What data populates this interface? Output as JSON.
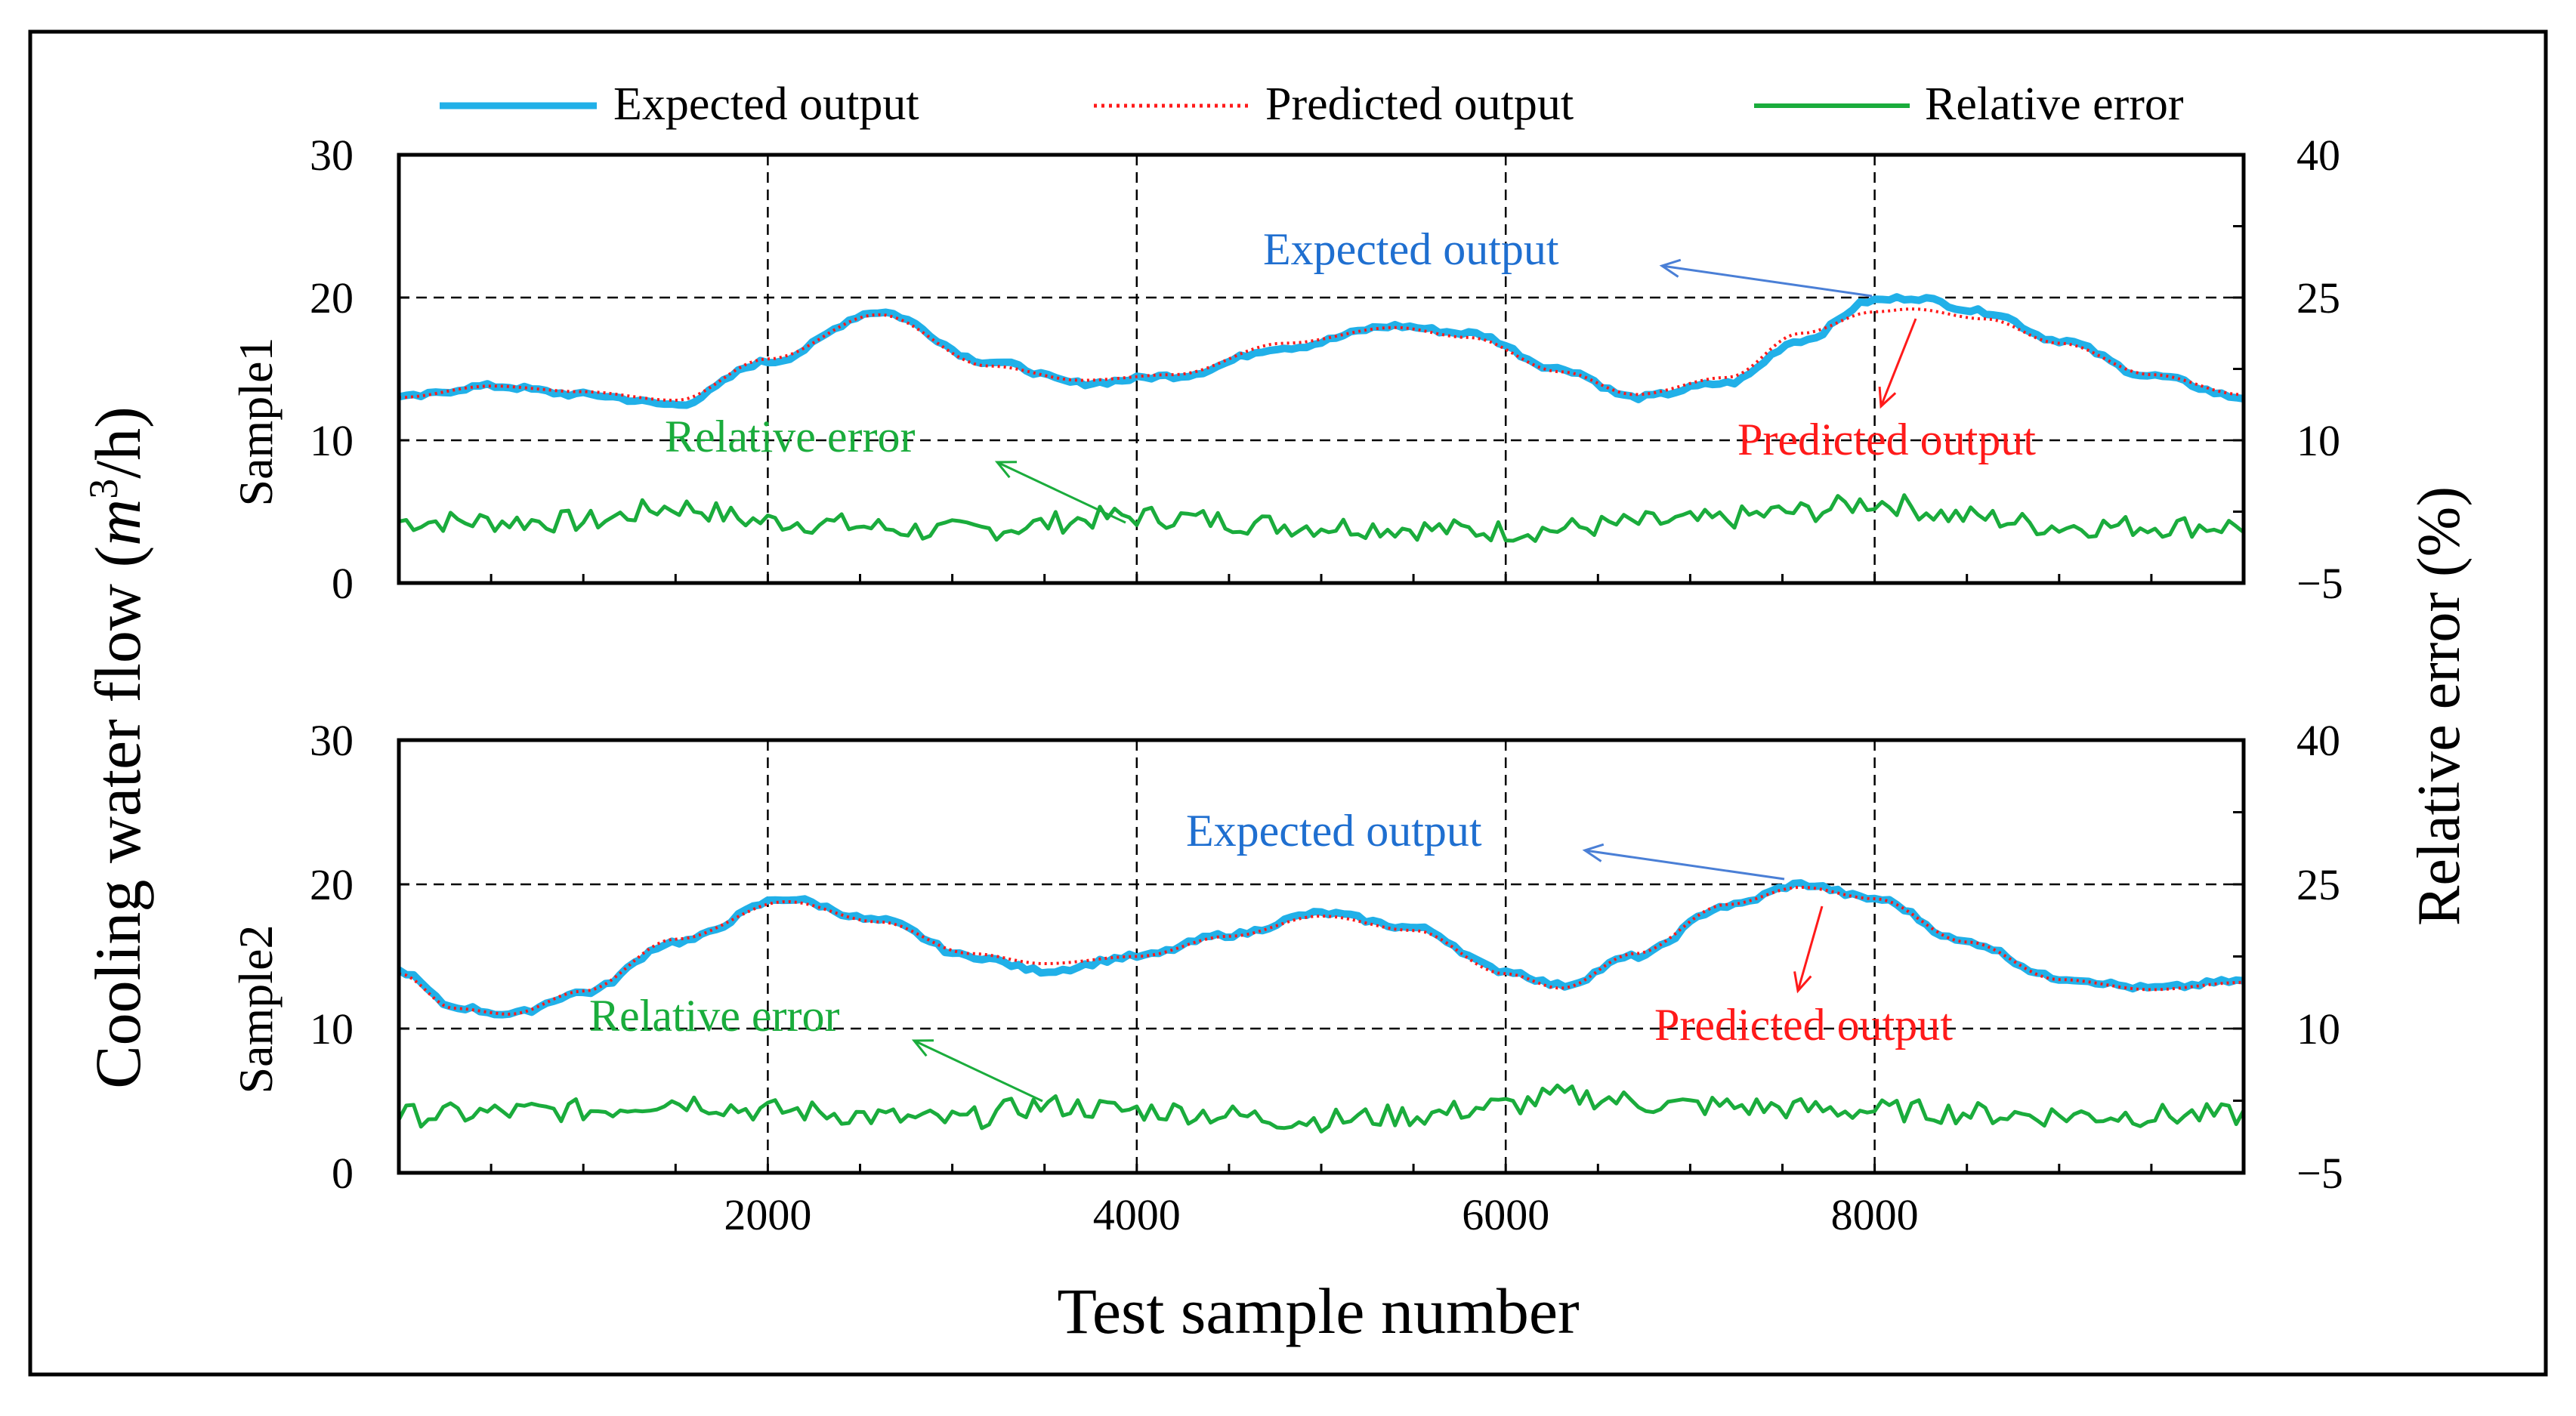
{
  "chart_data": {
    "type": "line",
    "x_title": "Test sample number",
    "y_title": "Cooling water flow (",
    "y_title_unit_base": "m",
    "y_title_unit_exp": "3",
    "y_title_unit_rest": "/h)",
    "y2_title": "Relative error (%)",
    "xlim": [
      0,
      10000
    ],
    "x_ticks": [
      2000,
      4000,
      6000,
      8000
    ],
    "x_tick_labels": [
      "2000",
      "4000",
      "6000",
      "8000"
    ],
    "legend": [
      {
        "name": "Expected output",
        "color": "#21b0e8",
        "style": "solid"
      },
      {
        "name": "Predicted output",
        "color": "#ff1a1a",
        "style": "dotted"
      },
      {
        "name": "Relative error",
        "color": "#1aac3c",
        "style": "solid"
      }
    ],
    "panels": [
      {
        "name": "Sample1",
        "ylim": [
          0,
          30
        ],
        "y_ticks": [
          0,
          10,
          20,
          30
        ],
        "y_tick_labels": [
          "0",
          "10",
          "20",
          "30"
        ],
        "y2lim": [
          -5,
          40
        ],
        "y2_ticks": [
          -5,
          10,
          25,
          40
        ],
        "y2_tick_labels": [
          "−5",
          "10",
          "25",
          "40"
        ],
        "expected": {
          "x": [
            0,
            500,
            1000,
            1500,
            2000,
            2600,
            3200,
            3700,
            4200,
            4800,
            5400,
            5800,
            6300,
            6700,
            7200,
            7600,
            8000,
            8200,
            8600,
            9000,
            9500,
            10000
          ],
          "y": [
            13,
            13.8,
            13.2,
            12.5,
            15.5,
            19,
            15.5,
            14,
            14.5,
            16.5,
            18,
            17.5,
            15,
            13,
            14,
            17,
            19.8,
            20,
            19,
            17,
            14.5,
            13
          ]
        },
        "predicted": {
          "x": [
            0,
            500,
            1000,
            1500,
            2000,
            2600,
            3200,
            3700,
            4200,
            4800,
            5400,
            5800,
            6300,
            6700,
            7200,
            7600,
            8000,
            8200,
            8600,
            9000,
            9500,
            10000
          ],
          "y": [
            13,
            13.8,
            13.4,
            12.8,
            15.7,
            18.8,
            15.2,
            14.2,
            14.6,
            16.8,
            17.9,
            17.2,
            14.8,
            13.2,
            14.4,
            17.5,
            19,
            19.2,
            18.5,
            16.8,
            14.6,
            13.2
          ]
        },
        "relative_error": {
          "x": [
            0,
            1000,
            1500,
            2000,
            3000,
            4000,
            5000,
            6000,
            7000,
            7600,
            8000,
            8500,
            9000,
            10000
          ],
          "y": [
            1,
            1,
            2.5,
            1,
            0,
            1.5,
            0.5,
            0,
            1,
            2,
            3,
            1.5,
            0.5,
            0.5
          ]
        },
        "annotations": [
          {
            "text": "Expected output",
            "color": "#1f6fd0"
          },
          {
            "text": "Predicted output",
            "color": "#ff1a1a"
          },
          {
            "text": "Relative  error",
            "color": "#1aac3c"
          }
        ]
      },
      {
        "name": "Sample2",
        "ylim": [
          0,
          30
        ],
        "y_ticks": [
          0,
          10,
          20,
          30
        ],
        "y_tick_labels": [
          "0",
          "10",
          "20",
          "30"
        ],
        "y2lim": [
          -5,
          40
        ],
        "y2_ticks": [
          -5,
          10,
          25,
          40
        ],
        "y2_tick_labels": [
          "−5",
          "10",
          "25",
          "40"
        ],
        "expected": {
          "x": [
            0,
            300,
            600,
            1000,
            1500,
            2100,
            2600,
            3100,
            3500,
            4000,
            4500,
            5000,
            5500,
            6000,
            6300,
            6700,
            7200,
            7600,
            8000,
            8500,
            9000,
            9500,
            10000
          ],
          "y": [
            14,
            11.5,
            11,
            12.5,
            16,
            19,
            17.5,
            15,
            14,
            15,
            16.5,
            18,
            17,
            14,
            13,
            15,
            18.5,
            20,
            19,
            16,
            13.5,
            12.8,
            13.3
          ]
        },
        "predicted": {
          "x": [
            0,
            300,
            600,
            1000,
            1500,
            2100,
            2600,
            3100,
            3500,
            4000,
            4500,
            5000,
            5500,
            6000,
            6300,
            6700,
            7200,
            7600,
            8000,
            8500,
            9000,
            9500,
            10000
          ],
          "y": [
            13.8,
            11.4,
            11,
            12.6,
            16.2,
            18.8,
            17.4,
            15.2,
            14.5,
            15,
            16.4,
            17.8,
            16.8,
            13.8,
            12.8,
            15.2,
            18.6,
            19.8,
            19,
            16,
            13.4,
            12.7,
            13.2
          ]
        },
        "relative_error": {
          "x": [
            0,
            1000,
            1500,
            2000,
            3000,
            3500,
            4000,
            5000,
            5500,
            6000,
            6300,
            7000,
            8000,
            9000,
            10000
          ],
          "y": [
            0.5,
            1,
            2,
            1,
            0,
            1.5,
            1,
            0,
            0.5,
            1.5,
            2.5,
            1.5,
            1,
            0.5,
            0.5
          ]
        },
        "annotations": [
          {
            "text": "Expected output",
            "color": "#1f6fd0"
          },
          {
            "text": "Predicted output",
            "color": "#ff1a1a"
          },
          {
            "text": "Relative  error",
            "color": "#1aac3c"
          }
        ]
      }
    ]
  }
}
